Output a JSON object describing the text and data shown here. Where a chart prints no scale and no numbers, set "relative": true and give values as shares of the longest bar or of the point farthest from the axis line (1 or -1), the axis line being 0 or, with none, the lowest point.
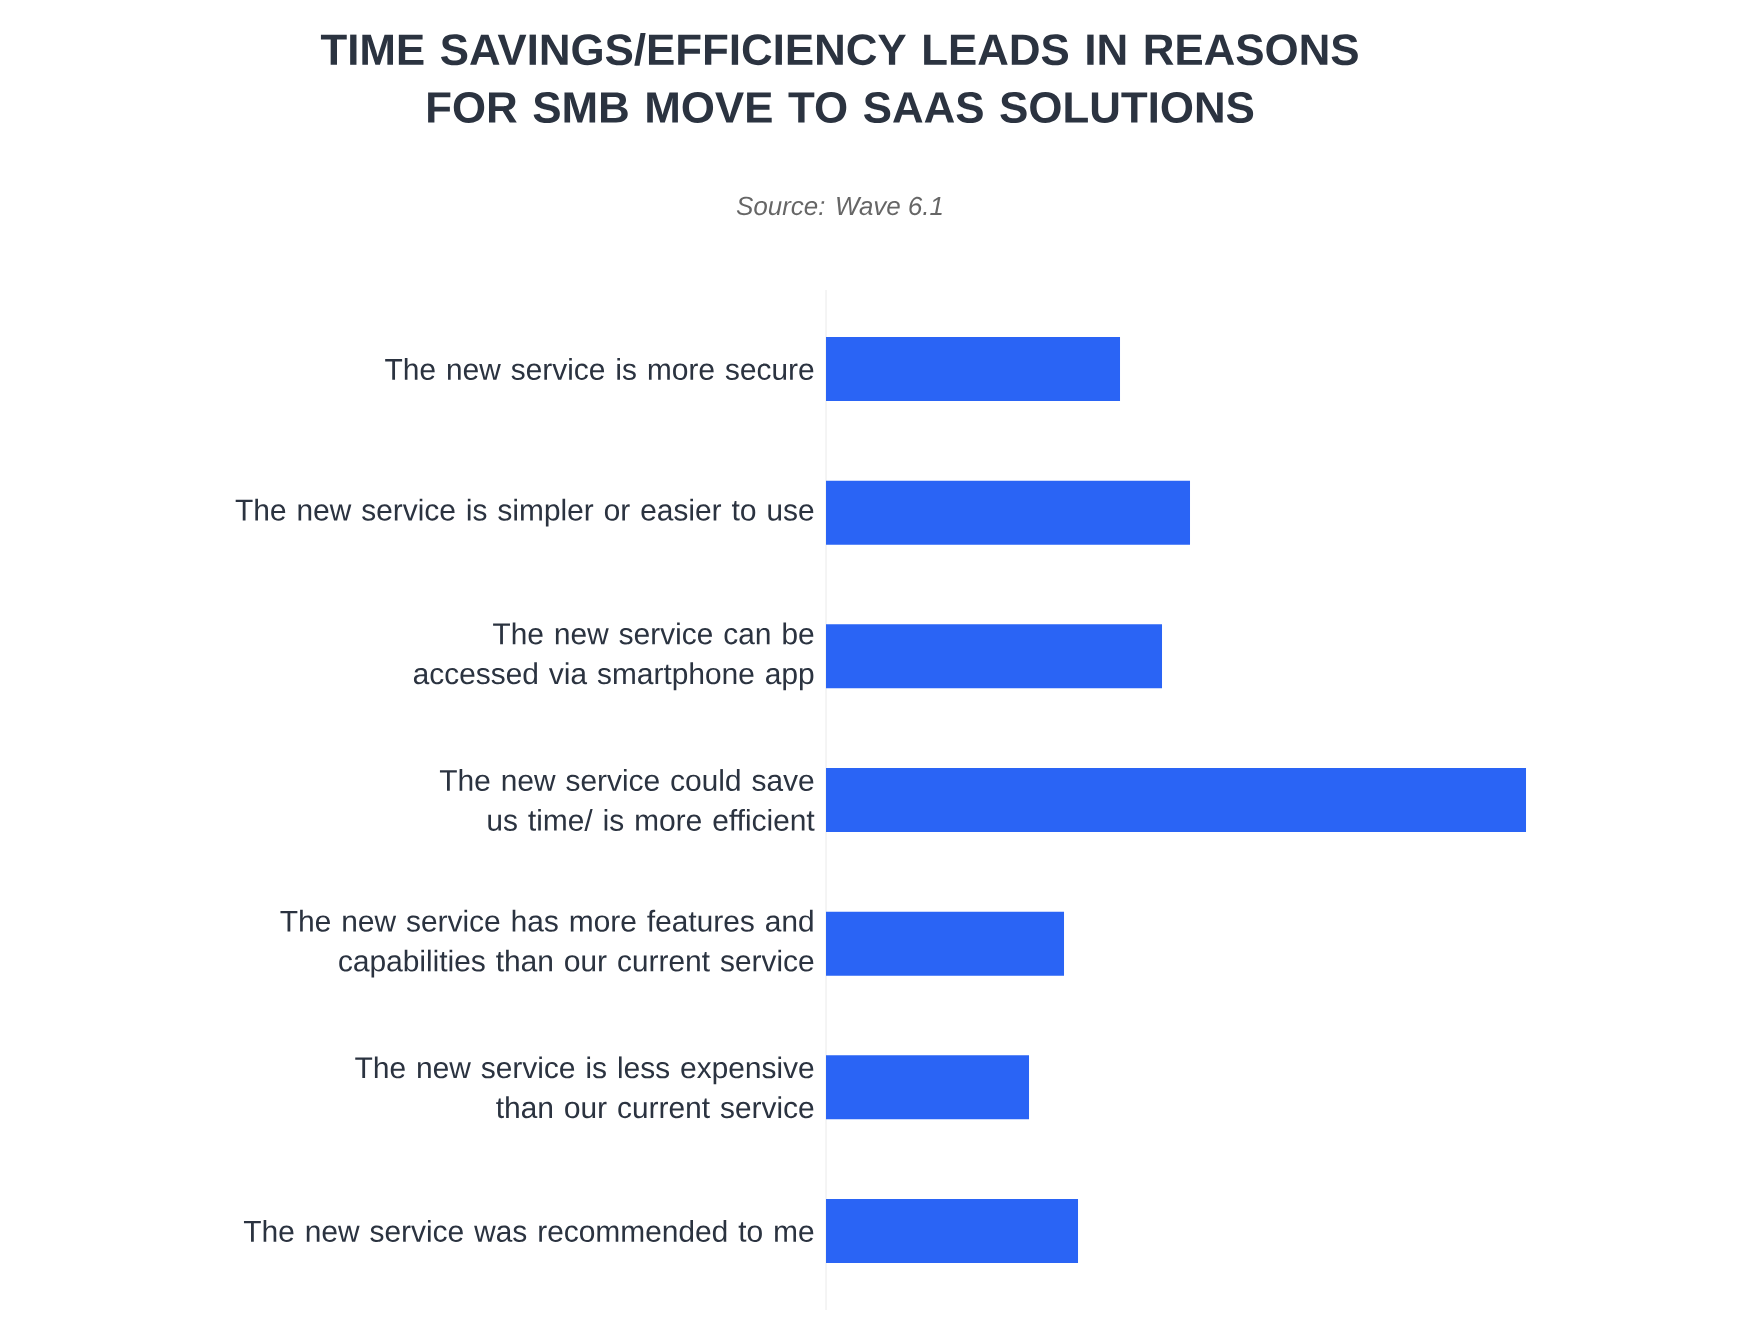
{
  "chart_data": {
    "type": "bar",
    "orientation": "horizontal",
    "relative": true,
    "title": "TIME SAVINGS/EFFICIENCY LEADS IN REASONS FOR SMB MOVE TO SAAS SOLUTIONS",
    "subtitle": "Source: Wave 6.1",
    "categories": [
      "The new service is more secure",
      "The new service is simpler or easier to use",
      "The new service can be accessed via smartphone app",
      "The new service could save us time/ is more efficient",
      "The new service has more features and capabilities than our current service",
      "The new service is less expensive than our current service",
      "The new service was recommended to me"
    ],
    "values": [
      0.42,
      0.52,
      0.48,
      1,
      0.34,
      0.29,
      0.36
    ],
    "color": "#2a64f5"
  }
}
